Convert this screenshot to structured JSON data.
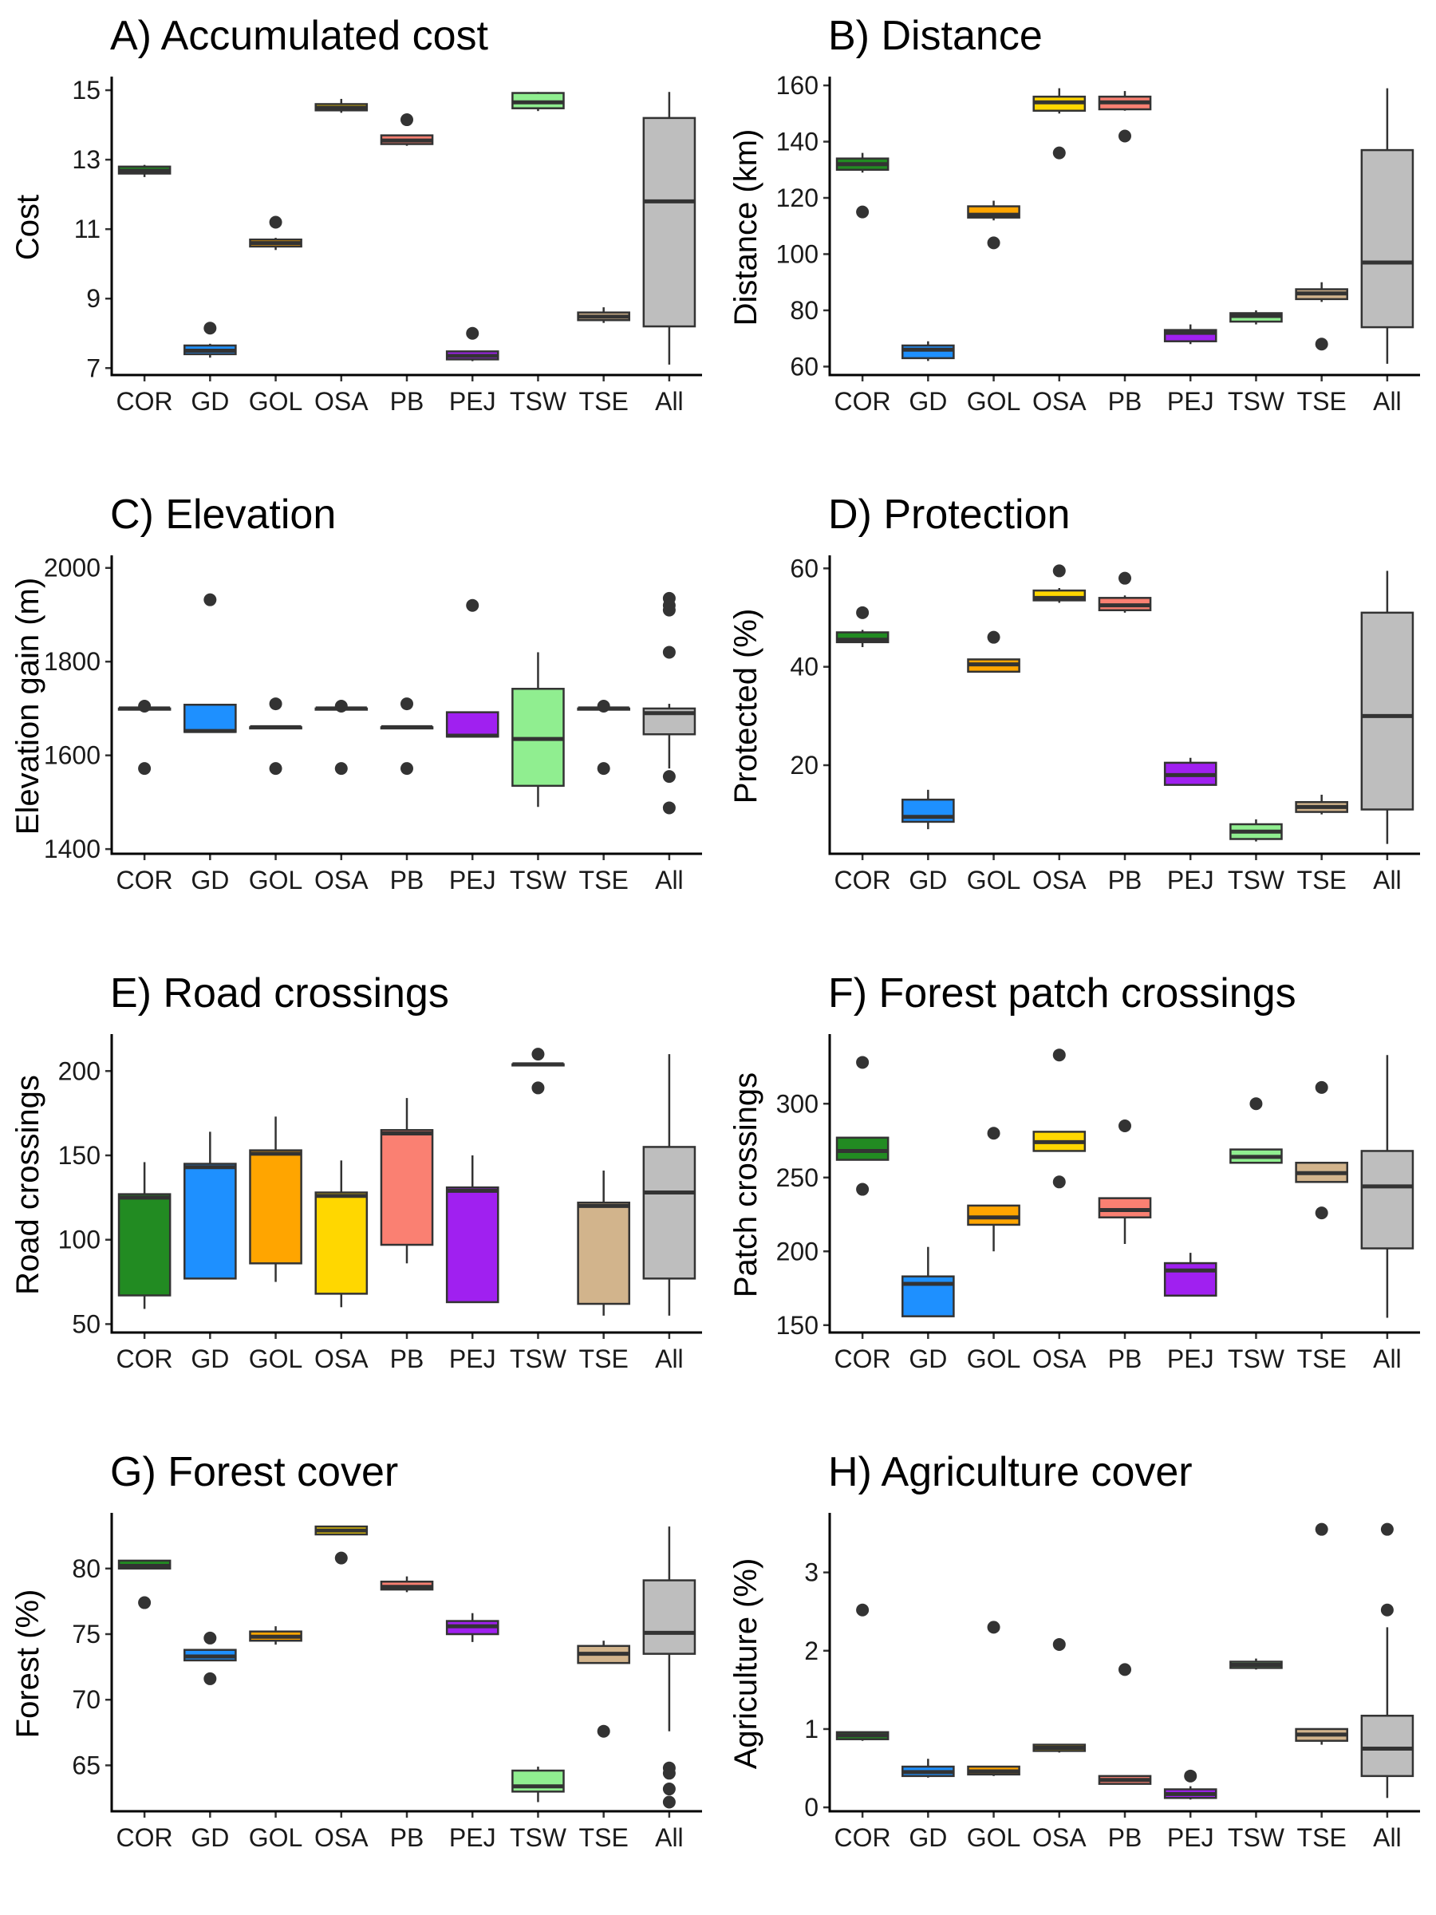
{
  "categories": [
    "COR",
    "GD",
    "GOL",
    "OSA",
    "PB",
    "PEJ",
    "TSW",
    "TSE",
    "All"
  ],
  "colors": [
    "#228B22",
    "#1E90FF",
    "#FFA500",
    "#FFD700",
    "#FA8072",
    "#A020F0",
    "#90EE90",
    "#D2B48C",
    "#BEBEBE"
  ],
  "chart_data": [
    {
      "type": "box",
      "title": "A) Accumulated cost",
      "ylabel": "Cost",
      "ylim": [
        6.8,
        15.3
      ],
      "yticks": [
        7,
        9,
        11,
        13,
        15
      ],
      "boxes": [
        {
          "whisker_low": 12.5,
          "q1": 12.6,
          "median": 12.68,
          "q3": 12.8,
          "whisker_high": 12.85,
          "outliers": []
        },
        {
          "whisker_low": 7.3,
          "q1": 7.4,
          "median": 7.5,
          "q3": 7.65,
          "whisker_high": 7.7,
          "outliers": [
            8.15
          ]
        },
        {
          "whisker_low": 10.4,
          "q1": 10.5,
          "median": 10.6,
          "q3": 10.7,
          "whisker_high": 10.75,
          "outliers": [
            11.2
          ]
        },
        {
          "whisker_low": 14.35,
          "q1": 14.42,
          "median": 14.5,
          "q3": 14.6,
          "whisker_high": 14.75,
          "outliers": []
        },
        {
          "whisker_low": 13.4,
          "q1": 13.45,
          "median": 13.55,
          "q3": 13.7,
          "whisker_high": 13.72,
          "outliers": [
            14.15
          ]
        },
        {
          "whisker_low": 7.2,
          "q1": 7.25,
          "median": 7.35,
          "q3": 7.48,
          "whisker_high": 7.5,
          "outliers": [
            8.0
          ]
        },
        {
          "whisker_low": 14.4,
          "q1": 14.48,
          "median": 14.65,
          "q3": 14.92,
          "whisker_high": 14.95,
          "outliers": []
        },
        {
          "whisker_low": 8.3,
          "q1": 8.38,
          "median": 8.48,
          "q3": 8.6,
          "whisker_high": 8.75,
          "outliers": []
        },
        {
          "whisker_low": 7.1,
          "q1": 8.2,
          "median": 11.8,
          "q3": 14.2,
          "whisker_high": 14.95,
          "outliers": []
        }
      ]
    },
    {
      "type": "box",
      "title": "B) Distance",
      "ylabel": "Distance (km)",
      "ylim": [
        57,
        162
      ],
      "yticks": [
        60,
        80,
        100,
        120,
        140,
        160
      ],
      "boxes": [
        {
          "whisker_low": 129,
          "q1": 130,
          "median": 132,
          "q3": 134,
          "whisker_high": 136,
          "outliers": [
            115
          ]
        },
        {
          "whisker_low": 62,
          "q1": 63,
          "median": 66,
          "q3": 67.5,
          "whisker_high": 69,
          "outliers": []
        },
        {
          "whisker_low": 112,
          "q1": 113,
          "median": 114,
          "q3": 117,
          "whisker_high": 119,
          "outliers": [
            104
          ]
        },
        {
          "whisker_low": 150,
          "q1": 151,
          "median": 154,
          "q3": 156,
          "whisker_high": 159,
          "outliers": [
            136
          ]
        },
        {
          "whisker_low": 151,
          "q1": 151.5,
          "median": 154,
          "q3": 156,
          "whisker_high": 158,
          "outliers": [
            142
          ]
        },
        {
          "whisker_low": 68,
          "q1": 69,
          "median": 72,
          "q3": 73,
          "whisker_high": 75,
          "outliers": []
        },
        {
          "whisker_low": 75,
          "q1": 76,
          "median": 78,
          "q3": 79,
          "whisker_high": 80,
          "outliers": []
        },
        {
          "whisker_low": 83,
          "q1": 84,
          "median": 86,
          "q3": 87.5,
          "whisker_high": 90,
          "outliers": [
            68
          ]
        },
        {
          "whisker_low": 61,
          "q1": 74,
          "median": 97,
          "q3": 137,
          "whisker_high": 159,
          "outliers": []
        }
      ]
    },
    {
      "type": "box",
      "title": "C) Elevation",
      "ylabel": "Elevation gain (m)",
      "ylim": [
        1390,
        2020
      ],
      "yticks": [
        1400,
        1600,
        1800,
        2000
      ],
      "boxes": [
        {
          "whisker_low": 1700,
          "q1": 1700,
          "median": 1700,
          "q3": 1700,
          "whisker_high": 1700,
          "outliers": [
            1705,
            1572
          ]
        },
        {
          "whisker_low": 1650,
          "q1": 1650,
          "median": 1652,
          "q3": 1708,
          "whisker_high": 1708,
          "outliers": [
            1932
          ]
        },
        {
          "whisker_low": 1660,
          "q1": 1660,
          "median": 1660,
          "q3": 1660,
          "whisker_high": 1660,
          "outliers": [
            1710,
            1572
          ]
        },
        {
          "whisker_low": 1700,
          "q1": 1700,
          "median": 1700,
          "q3": 1700,
          "whisker_high": 1700,
          "outliers": [
            1705,
            1572
          ]
        },
        {
          "whisker_low": 1660,
          "q1": 1660,
          "median": 1660,
          "q3": 1660,
          "whisker_high": 1660,
          "outliers": [
            1710,
            1572
          ]
        },
        {
          "whisker_low": 1640,
          "q1": 1640,
          "median": 1642,
          "q3": 1692,
          "whisker_high": 1692,
          "outliers": [
            1920
          ]
        },
        {
          "whisker_low": 1490,
          "q1": 1535,
          "median": 1635,
          "q3": 1742,
          "whisker_high": 1820,
          "outliers": []
        },
        {
          "whisker_low": 1700,
          "q1": 1700,
          "median": 1700,
          "q3": 1700,
          "whisker_high": 1700,
          "outliers": [
            1705,
            1572
          ]
        },
        {
          "whisker_low": 1572,
          "q1": 1645,
          "median": 1690,
          "q3": 1700,
          "whisker_high": 1710,
          "outliers": [
            1935,
            1920,
            1910,
            1820,
            1555,
            1488
          ]
        }
      ]
    },
    {
      "type": "box",
      "title": "D) Protection",
      "ylabel": "Protected (%)",
      "ylim": [
        2,
        62
      ],
      "yticks": [
        20,
        40,
        60
      ],
      "boxes": [
        {
          "whisker_low": 44,
          "q1": 45,
          "median": 45.5,
          "q3": 47,
          "whisker_high": 47.5,
          "outliers": [
            51
          ]
        },
        {
          "whisker_low": 7,
          "q1": 8.5,
          "median": 9.5,
          "q3": 13,
          "whisker_high": 15,
          "outliers": []
        },
        {
          "whisker_low": 39,
          "q1": 39,
          "median": 40.5,
          "q3": 41.5,
          "whisker_high": 41.5,
          "outliers": [
            46
          ]
        },
        {
          "whisker_low": 53,
          "q1": 53.5,
          "median": 54,
          "q3": 55.5,
          "whisker_high": 56,
          "outliers": [
            59.5
          ]
        },
        {
          "whisker_low": 51,
          "q1": 51.5,
          "median": 52.5,
          "q3": 54,
          "whisker_high": 54.5,
          "outliers": [
            58
          ]
        },
        {
          "whisker_low": 16,
          "q1": 16,
          "median": 18,
          "q3": 20.5,
          "whisker_high": 21.5,
          "outliers": []
        },
        {
          "whisker_low": 4.5,
          "q1": 5,
          "median": 6.5,
          "q3": 8,
          "whisker_high": 9,
          "outliers": []
        },
        {
          "whisker_low": 10,
          "q1": 10.5,
          "median": 11.5,
          "q3": 12.5,
          "whisker_high": 14,
          "outliers": []
        },
        {
          "whisker_low": 4,
          "q1": 11,
          "median": 30,
          "q3": 51,
          "whisker_high": 59.5,
          "outliers": []
        }
      ]
    },
    {
      "type": "box",
      "title": "E) Road crossings",
      "ylabel": "Road crossings",
      "ylim": [
        45,
        220
      ],
      "yticks": [
        50,
        100,
        150,
        200
      ],
      "boxes": [
        {
          "whisker_low": 59,
          "q1": 67,
          "median": 125,
          "q3": 127,
          "whisker_high": 146,
          "outliers": []
        },
        {
          "whisker_low": 77,
          "q1": 77,
          "median": 143,
          "q3": 145,
          "whisker_high": 164,
          "outliers": []
        },
        {
          "whisker_low": 75,
          "q1": 86,
          "median": 151,
          "q3": 153,
          "whisker_high": 173,
          "outliers": []
        },
        {
          "whisker_low": 60,
          "q1": 68,
          "median": 126,
          "q3": 128,
          "whisker_high": 147,
          "outliers": []
        },
        {
          "whisker_low": 86,
          "q1": 97,
          "median": 163,
          "q3": 165,
          "whisker_high": 184,
          "outliers": []
        },
        {
          "whisker_low": 63,
          "q1": 63,
          "median": 129,
          "q3": 131,
          "whisker_high": 150,
          "outliers": []
        },
        {
          "whisker_low": 204,
          "q1": 204,
          "median": 204,
          "q3": 204,
          "whisker_high": 204,
          "outliers": [
            210,
            190
          ]
        },
        {
          "whisker_low": 55,
          "q1": 62,
          "median": 120,
          "q3": 122,
          "whisker_high": 141,
          "outliers": []
        },
        {
          "whisker_low": 55,
          "q1": 77,
          "median": 128,
          "q3": 155,
          "whisker_high": 210,
          "outliers": []
        }
      ]
    },
    {
      "type": "box",
      "title": "F) Forest patch crossings",
      "ylabel": "Patch crossings",
      "ylim": [
        145,
        345
      ],
      "yticks": [
        150,
        200,
        250,
        300
      ],
      "boxes": [
        {
          "whisker_low": 262,
          "q1": 262,
          "median": 268,
          "q3": 277,
          "whisker_high": 277,
          "outliers": [
            328,
            242
          ]
        },
        {
          "whisker_low": 156,
          "q1": 156,
          "median": 178,
          "q3": 183,
          "whisker_high": 203,
          "outliers": []
        },
        {
          "whisker_low": 200,
          "q1": 218,
          "median": 223,
          "q3": 231,
          "whisker_high": 231,
          "outliers": [
            280
          ]
        },
        {
          "whisker_low": 268,
          "q1": 268,
          "median": 274,
          "q3": 281,
          "whisker_high": 281,
          "outliers": [
            333,
            247
          ]
        },
        {
          "whisker_low": 205,
          "q1": 223,
          "median": 228,
          "q3": 236,
          "whisker_high": 236,
          "outliers": [
            285
          ]
        },
        {
          "whisker_low": 170,
          "q1": 170,
          "median": 187,
          "q3": 192,
          "whisker_high": 199,
          "outliers": []
        },
        {
          "whisker_low": 260,
          "q1": 260,
          "median": 264,
          "q3": 269,
          "whisker_high": 269,
          "outliers": [
            300
          ]
        },
        {
          "whisker_low": 247,
          "q1": 247,
          "median": 253,
          "q3": 260,
          "whisker_high": 260,
          "outliers": [
            311,
            226
          ]
        },
        {
          "whisker_low": 155,
          "q1": 202,
          "median": 244,
          "q3": 268,
          "whisker_high": 333,
          "outliers": []
        }
      ]
    },
    {
      "type": "box",
      "title": "G) Forest cover",
      "ylabel": "Forest (%)",
      "ylim": [
        61.5,
        84
      ],
      "yticks": [
        65,
        70,
        75,
        80
      ],
      "boxes": [
        {
          "whisker_low": 80,
          "q1": 80,
          "median": 80.2,
          "q3": 80.6,
          "whisker_high": 80.6,
          "outliers": [
            77.4
          ]
        },
        {
          "whisker_low": 73,
          "q1": 73,
          "median": 73.3,
          "q3": 73.8,
          "whisker_high": 73.8,
          "outliers": [
            74.7,
            71.6
          ]
        },
        {
          "whisker_low": 74.2,
          "q1": 74.5,
          "median": 74.8,
          "q3": 75.2,
          "whisker_high": 75.6,
          "outliers": []
        },
        {
          "whisker_low": 82.6,
          "q1": 82.6,
          "median": 82.9,
          "q3": 83.2,
          "whisker_high": 83.2,
          "outliers": [
            80.8
          ]
        },
        {
          "whisker_low": 78.2,
          "q1": 78.4,
          "median": 78.6,
          "q3": 79,
          "whisker_high": 79.4,
          "outliers": []
        },
        {
          "whisker_low": 74.4,
          "q1": 75,
          "median": 75.6,
          "q3": 76,
          "whisker_high": 76.6,
          "outliers": []
        },
        {
          "whisker_low": 62.2,
          "q1": 63,
          "median": 63.4,
          "q3": 64.6,
          "whisker_high": 64.9,
          "outliers": []
        },
        {
          "whisker_low": 72.8,
          "q1": 72.8,
          "median": 73.5,
          "q3": 74.1,
          "whisker_high": 74.5,
          "outliers": [
            67.6
          ]
        },
        {
          "whisker_low": 67.6,
          "q1": 73.5,
          "median": 75.1,
          "q3": 79.1,
          "whisker_high": 83.2,
          "outliers": [
            64.8,
            64.4,
            63.2,
            62.2
          ]
        }
      ]
    },
    {
      "type": "box",
      "title": "H) Agriculture cover",
      "ylabel": "Agriculture (%)",
      "ylim": [
        -0.05,
        3.72
      ],
      "yticks": [
        0,
        1,
        2,
        3
      ],
      "boxes": [
        {
          "whisker_low": 0.85,
          "q1": 0.87,
          "median": 0.92,
          "q3": 0.96,
          "whisker_high": 0.96,
          "outliers": [
            2.52
          ]
        },
        {
          "whisker_low": 0.38,
          "q1": 0.4,
          "median": 0.45,
          "q3": 0.52,
          "whisker_high": 0.62,
          "outliers": []
        },
        {
          "whisker_low": 0.4,
          "q1": 0.42,
          "median": 0.46,
          "q3": 0.52,
          "whisker_high": 0.52,
          "outliers": [
            2.3
          ]
        },
        {
          "whisker_low": 0.7,
          "q1": 0.72,
          "median": 0.76,
          "q3": 0.8,
          "whisker_high": 0.8,
          "outliers": [
            2.08
          ]
        },
        {
          "whisker_low": 0.3,
          "q1": 0.3,
          "median": 0.35,
          "q3": 0.4,
          "whisker_high": 0.4,
          "outliers": [
            1.76
          ]
        },
        {
          "whisker_low": 0.1,
          "q1": 0.12,
          "median": 0.17,
          "q3": 0.23,
          "whisker_high": 0.27,
          "outliers": [
            0.4
          ]
        },
        {
          "whisker_low": 1.76,
          "q1": 1.78,
          "median": 1.82,
          "q3": 1.86,
          "whisker_high": 1.9,
          "outliers": []
        },
        {
          "whisker_low": 0.8,
          "q1": 0.85,
          "median": 0.93,
          "q3": 1.0,
          "whisker_high": 1.0,
          "outliers": [
            3.55
          ]
        },
        {
          "whisker_low": 0.12,
          "q1": 0.4,
          "median": 0.75,
          "q3": 1.17,
          "whisker_high": 2.3,
          "outliers": [
            3.55,
            2.52
          ]
        }
      ]
    }
  ]
}
